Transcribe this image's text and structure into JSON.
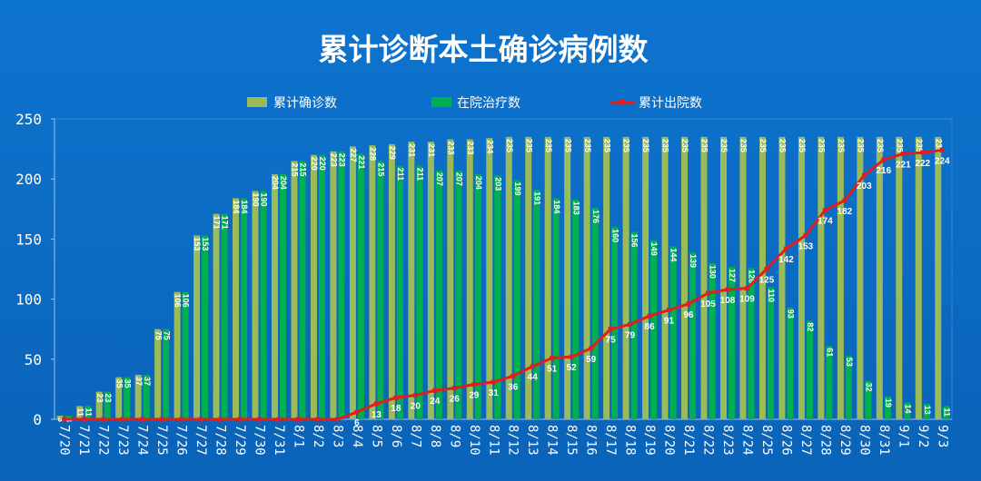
{
  "chart_data": {
    "type": "bar",
    "title": "累计诊断本土确诊病例数",
    "categories": [
      "7/20",
      "7/21",
      "7/22",
      "7/23",
      "7/24",
      "7/25",
      "7/26",
      "7/27",
      "7/28",
      "7/29",
      "7/30",
      "7/31",
      "8/1",
      "8/2",
      "8/3",
      "8/4",
      "8/5",
      "8/6",
      "8/7",
      "8/8",
      "8/9",
      "8/10",
      "8/11",
      "8/12",
      "8/13",
      "8/14",
      "8/15",
      "8/16",
      "8/17",
      "8/18",
      "8/19",
      "8/20",
      "8/21",
      "8/22",
      "8/23",
      "8/24",
      "8/25",
      "8/26",
      "8/27",
      "8/28",
      "8/29",
      "8/30",
      "8/31",
      "9/1",
      "9/2",
      "9/3"
    ],
    "series": [
      {
        "name": "累计确诊数",
        "kind": "bar",
        "color": "#9bbb59",
        "values": [
          3,
          11,
          23,
          35,
          37,
          75,
          106,
          153,
          171,
          184,
          190,
          204,
          215,
          220,
          223,
          227,
          228,
          229,
          231,
          231,
          233,
          233,
          234,
          235,
          235,
          235,
          235,
          235,
          235,
          235,
          235,
          235,
          235,
          235,
          235,
          235,
          235,
          235,
          235,
          235,
          235,
          235,
          235,
          235,
          235,
          235
        ]
      },
      {
        "name": "在院治疗数",
        "kind": "bar",
        "color": "#00b050",
        "values": [
          3,
          11,
          23,
          35,
          37,
          75,
          106,
          153,
          171,
          184,
          190,
          204,
          215,
          220,
          223,
          221,
          215,
          211,
          211,
          207,
          207,
          204,
          203,
          199,
          191,
          184,
          183,
          176,
          160,
          156,
          149,
          144,
          139,
          130,
          127,
          126,
          110,
          93,
          82,
          61,
          53,
          32,
          19,
          14,
          13,
          11
        ]
      },
      {
        "name": "累计出院数",
        "kind": "line",
        "color": "#e11d1d",
        "values": [
          0,
          0,
          0,
          0,
          0,
          0,
          0,
          0,
          0,
          0,
          0,
          0,
          0,
          0,
          0,
          6,
          13,
          18,
          20,
          24,
          26,
          29,
          31,
          36,
          44,
          51,
          52,
          59,
          75,
          79,
          86,
          91,
          96,
          105,
          108,
          109,
          125,
          142,
          153,
          174,
          182,
          203,
          216,
          221,
          222,
          224
        ]
      }
    ],
    "ylim": [
      0,
      250
    ],
    "yticks": [
      0,
      50,
      100,
      150,
      200,
      250
    ],
    "xlabel": "",
    "ylabel": "",
    "grid": false,
    "legend_position": "top-center"
  }
}
